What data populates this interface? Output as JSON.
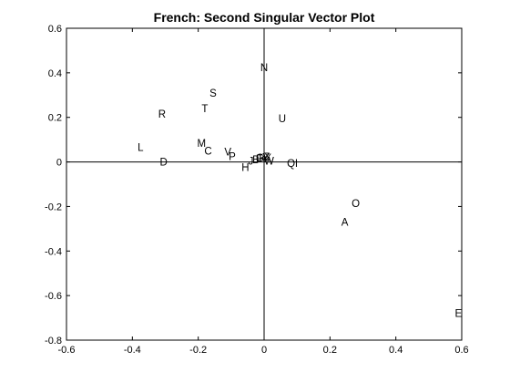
{
  "chart_data": {
    "type": "scatter",
    "title": "French: Second Singular Vector Plot",
    "xlabel": "",
    "ylabel": "",
    "xlim": [
      -0.6,
      0.6
    ],
    "ylim": [
      -0.8,
      0.6
    ],
    "xticks": [
      "-0.6",
      "-0.4",
      "-0.2",
      "0",
      "0.2",
      "0.4",
      "0.6"
    ],
    "yticks": [
      "-0.8",
      "-0.6",
      "-0.4",
      "-0.2",
      "0",
      "0.2",
      "0.4",
      "0.6"
    ],
    "grid": false,
    "reference_lines": {
      "x": 0,
      "y": 0
    },
    "points": [
      {
        "label": "N",
        "x": 0.0,
        "y": 0.425
      },
      {
        "label": "S",
        "x": -0.155,
        "y": 0.31
      },
      {
        "label": "T",
        "x": -0.18,
        "y": 0.24
      },
      {
        "label": "R",
        "x": -0.31,
        "y": 0.215
      },
      {
        "label": "U",
        "x": 0.055,
        "y": 0.195
      },
      {
        "label": "L",
        "x": -0.375,
        "y": 0.065
      },
      {
        "label": "M",
        "x": -0.19,
        "y": 0.085
      },
      {
        "label": "C",
        "x": -0.17,
        "y": 0.05
      },
      {
        "label": "V",
        "x": -0.11,
        "y": 0.045
      },
      {
        "label": "P",
        "x": -0.097,
        "y": 0.025
      },
      {
        "label": "D",
        "x": -0.305,
        "y": 0.0
      },
      {
        "label": "H",
        "x": -0.057,
        "y": -0.025
      },
      {
        "label": "J",
        "x": -0.04,
        "y": 0.005
      },
      {
        "label": "B",
        "x": -0.025,
        "y": 0.01
      },
      {
        "label": "F",
        "x": -0.015,
        "y": 0.015
      },
      {
        "label": "G",
        "x": -0.012,
        "y": 0.018
      },
      {
        "label": "K",
        "x": -0.005,
        "y": 0.015
      },
      {
        "label": "Y",
        "x": 0.005,
        "y": 0.02
      },
      {
        "label": "X",
        "x": 0.012,
        "y": 0.018
      },
      {
        "label": "Z",
        "x": 0.008,
        "y": 0.022
      },
      {
        "label": "W",
        "x": 0.015,
        "y": 0.005
      },
      {
        "label": "Q",
        "x": 0.082,
        "y": -0.005
      },
      {
        "label": "I",
        "x": 0.098,
        "y": -0.005
      },
      {
        "label": "O",
        "x": 0.278,
        "y": -0.185
      },
      {
        "label": "A",
        "x": 0.245,
        "y": -0.27
      },
      {
        "label": "E",
        "x": 0.59,
        "y": -0.68
      }
    ]
  }
}
